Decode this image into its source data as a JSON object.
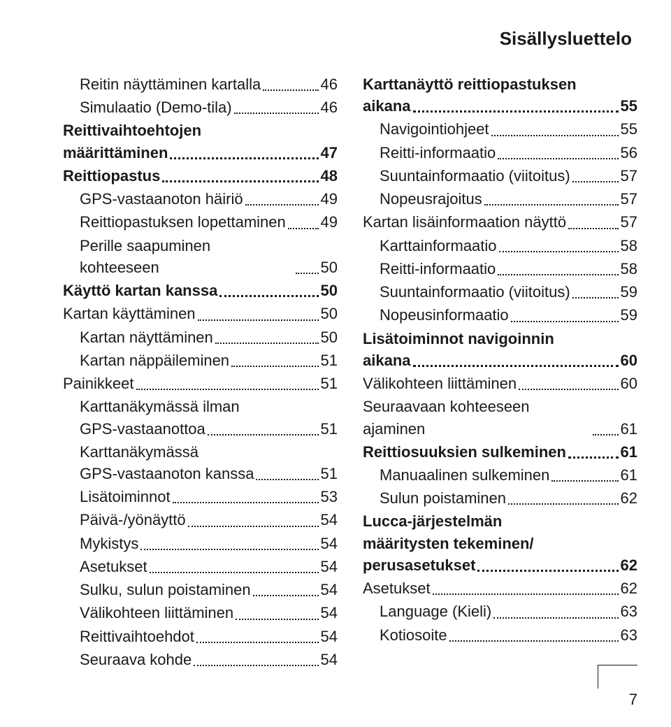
{
  "header": "Sisällysluettelo",
  "page_number": "7",
  "left": [
    {
      "label": "Reitin näyttäminen kartalla",
      "page": "46",
      "indent": 1
    },
    {
      "label": "Simulaatio (Demo-tila)",
      "page": "46",
      "indent": 1
    },
    {
      "label_lines": [
        "Reittivaihtoehtojen",
        "määrittäminen"
      ],
      "page": "47",
      "bold": true,
      "indent": 0
    },
    {
      "label": "Reittiopastus",
      "page": "48",
      "bold": true,
      "indent": 0
    },
    {
      "label": "GPS-vastaanoton häiriö",
      "page": "49",
      "indent": 1
    },
    {
      "label": "Reittiopastuksen lopettaminen",
      "page": "49",
      "indent": 1
    },
    {
      "label": "Perille saapuminen kohteeseen",
      "page": "50",
      "indent": 1
    },
    {
      "label": "Käyttö kartan kanssa",
      "page": "50",
      "bold": true,
      "indent": 0
    },
    {
      "label": "Kartan käyttäminen",
      "page": "50",
      "indent": 0
    },
    {
      "label": "Kartan näyttäminen",
      "page": "50",
      "indent": 1
    },
    {
      "label": "Kartan näppäileminen",
      "page": "51",
      "indent": 1
    },
    {
      "label": "Painikkeet",
      "page": "51",
      "indent": 0
    },
    {
      "label_lines": [
        "Karttanäkymässä ilman",
        "GPS-vastaanottoa"
      ],
      "page": "51",
      "indent": 1
    },
    {
      "label_lines": [
        "Karttanäkymässä",
        "GPS-vastaanoton kanssa"
      ],
      "page": "51",
      "indent": 1
    },
    {
      "label": "Lisätoiminnot",
      "page": "53",
      "indent": 1
    },
    {
      "label": "Päivä-/yönäyttö",
      "page": "54",
      "indent": 1
    },
    {
      "label": "Mykistys",
      "page": "54",
      "indent": 1
    },
    {
      "label": "Asetukset",
      "page": "54",
      "indent": 1
    },
    {
      "label": "Sulku, sulun poistaminen",
      "page": "54",
      "indent": 1
    },
    {
      "label": "Välikohteen liittäminen",
      "page": "54",
      "indent": 1
    },
    {
      "label": "Reittivaihtoehdot",
      "page": "54",
      "indent": 1
    },
    {
      "label": "Seuraava kohde",
      "page": "54",
      "indent": 1
    }
  ],
  "right": [
    {
      "label_lines": [
        "Karttanäyttö reittiopastuksen",
        "aikana"
      ],
      "page": "55",
      "bold": true,
      "indent": 0
    },
    {
      "label": "Navigointiohjeet",
      "page": "55",
      "indent": 1
    },
    {
      "label": "Reitti-informaatio",
      "page": "56",
      "indent": 1
    },
    {
      "label": "Suuntainformaatio (viitoitus)",
      "page": "57",
      "indent": 1
    },
    {
      "label": "Nopeusrajoitus",
      "page": "57",
      "indent": 1
    },
    {
      "label": "Kartan lisäinformaation näyttö",
      "page": "57",
      "indent": 0
    },
    {
      "label": "Karttainformaatio",
      "page": "58",
      "indent": 1
    },
    {
      "label": "Reitti-informaatio",
      "page": "58",
      "indent": 1
    },
    {
      "label": "Suuntainformaatio (viitoitus)",
      "page": "59",
      "indent": 1
    },
    {
      "label": "Nopeusinformaatio",
      "page": "59",
      "indent": 1
    },
    {
      "label_lines": [
        "Lisätoiminnot navigoinnin",
        "aikana"
      ],
      "page": "60",
      "bold": true,
      "indent": 0
    },
    {
      "label": "Välikohteen liittäminen",
      "page": "60",
      "indent": 0
    },
    {
      "label": "Seuraavaan kohteeseen ajaminen",
      "page": "61",
      "indent": 0
    },
    {
      "label": "Reittiosuuksien sulkeminen",
      "page": "61",
      "bold": true,
      "indent": 0
    },
    {
      "label": "Manuaalinen sulkeminen",
      "page": "61",
      "indent": 1
    },
    {
      "label": "Sulun poistaminen",
      "page": "62",
      "indent": 1
    },
    {
      "label_lines": [
        "Lucca-järjestelmän",
        "määritysten tekeminen/",
        "perusasetukset"
      ],
      "page": "62",
      "bold": true,
      "indent": 0
    },
    {
      "label": "Asetukset",
      "page": "62",
      "indent": 0
    },
    {
      "label": "Language (Kieli)",
      "page": "63",
      "indent": 1
    },
    {
      "label": "Kotiosoite",
      "page": "63",
      "indent": 1
    }
  ]
}
